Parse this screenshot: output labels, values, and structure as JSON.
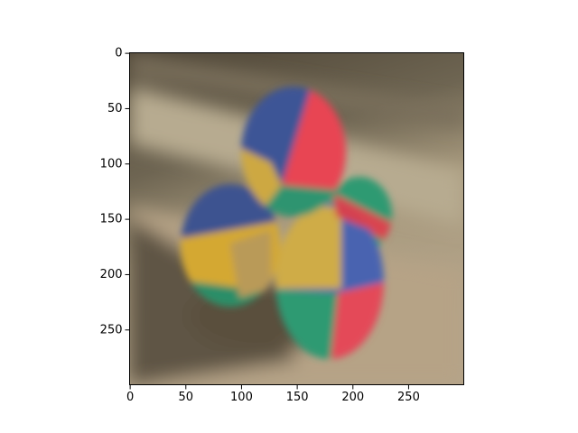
{
  "chart_data": {
    "type": "image",
    "xlim": [
      -0.5,
      299.5
    ],
    "ylim": [
      299.5,
      -0.5
    ],
    "xticks": [
      0,
      50,
      100,
      150,
      200,
      250
    ],
    "yticks": [
      0,
      50,
      100,
      150,
      200,
      250
    ]
  }
}
